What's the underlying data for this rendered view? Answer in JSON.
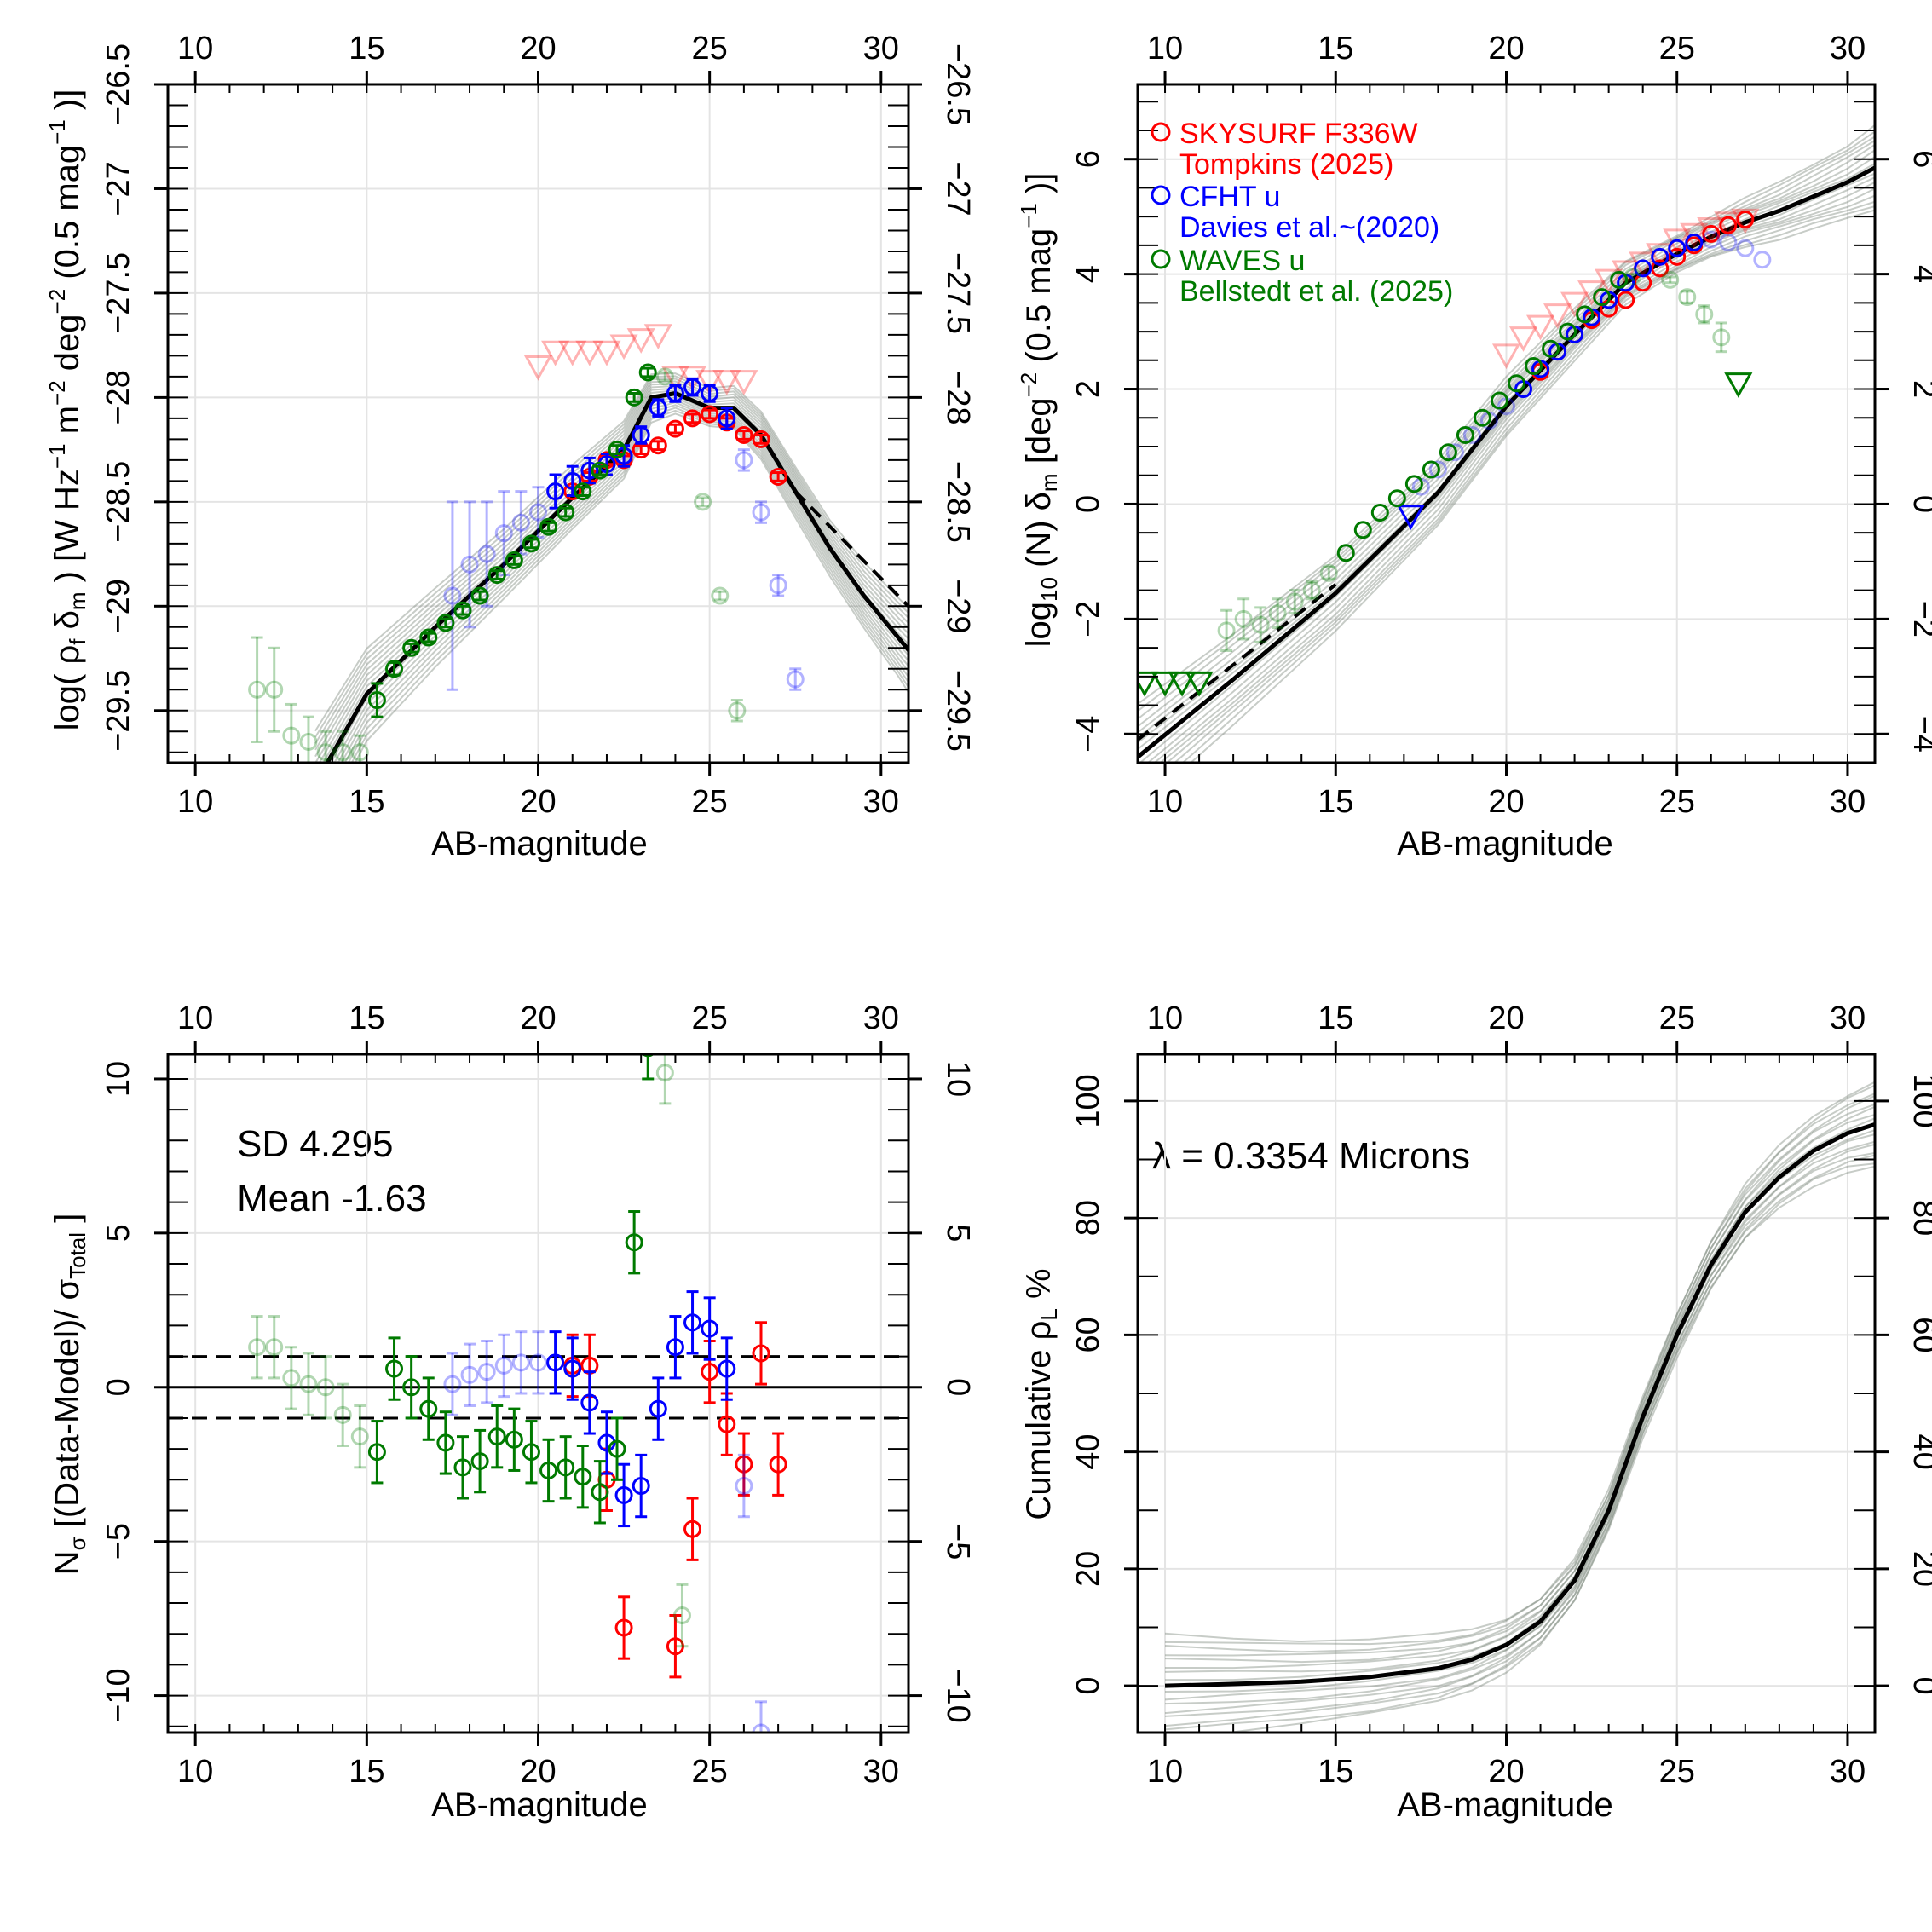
{
  "figure": {
    "palette": {
      "skysurf": "#ff0000",
      "cfht": "#0000ff",
      "waves": "#007a00",
      "model": "#000000",
      "mc": "#5e6e5e"
    }
  },
  "chart_data": [
    {
      "id": "panel-lumdens",
      "type": "scatter",
      "xlabel": "AB-magnitude",
      "ylabel": "log( ρf δm ) [W Hz−1 m−2 deg−2 (0.5 mag−1 )]",
      "xlim": [
        9.2,
        30.8
      ],
      "ylim": [
        -29.75,
        -26.5
      ],
      "xticks": [
        10,
        15,
        20,
        25,
        30
      ],
      "yticks": [
        -29.5,
        -29,
        -28.5,
        -28,
        -27.5,
        -27,
        -26.5
      ],
      "grid": true,
      "series": [
        {
          "name": "SKYSURF F336W",
          "color": "#ff0000",
          "marker": "circle",
          "x": [
            21,
            21.5,
            22,
            22.5,
            23,
            23.5,
            24,
            24.5,
            25,
            25.5,
            26,
            26.5,
            27
          ],
          "y": [
            -28.45,
            -28.38,
            -28.3,
            -28.3,
            -28.25,
            -28.23,
            -28.15,
            -28.1,
            -28.08,
            -28.12,
            -28.18,
            -28.2,
            -28.38
          ],
          "err": [
            0.02,
            0.02,
            0.02,
            0.02,
            0.02,
            0.02,
            0.02,
            0.02,
            0.02,
            0.02,
            0.02,
            0.02,
            0.02
          ]
        },
        {
          "name": "SKYSURF F336W (upper limits)",
          "color": "#ff0000",
          "marker": "triangle-down",
          "faded": true,
          "x": [
            20,
            20.5,
            21,
            21.5,
            22,
            22.5,
            23,
            23.5,
            24,
            24.5,
            25,
            25.5,
            26
          ],
          "y": [
            -27.85,
            -27.78,
            -27.78,
            -27.78,
            -27.78,
            -27.75,
            -27.72,
            -27.7,
            -27.9,
            -27.9,
            -27.92,
            -27.92,
            -27.92
          ]
        },
        {
          "name": "CFHT u",
          "color": "#0000ff",
          "marker": "circle",
          "x": [
            20.5,
            21,
            21.5,
            22,
            22.5,
            23,
            23.5,
            24,
            24.5,
            25,
            25.5
          ],
          "y": [
            -28.45,
            -28.4,
            -28.35,
            -28.32,
            -28.28,
            -28.18,
            -28.05,
            -27.98,
            -27.95,
            -27.98,
            -28.1
          ],
          "err": [
            0.08,
            0.07,
            0.06,
            0.05,
            0.05,
            0.04,
            0.04,
            0.04,
            0.04,
            0.04,
            0.05
          ]
        },
        {
          "name": "CFHT u (faded)",
          "color": "#0000ff",
          "marker": "circle",
          "faded": true,
          "x": [
            17.5,
            18,
            18.5,
            19,
            19.5,
            20,
            26,
            26.5,
            27,
            27.5
          ],
          "y": [
            -28.95,
            -28.8,
            -28.75,
            -28.65,
            -28.6,
            -28.55,
            -28.3,
            -28.55,
            -28.9,
            -29.35
          ],
          "err": [
            0.45,
            0.3,
            0.25,
            0.2,
            0.15,
            0.12,
            0.05,
            0.05,
            0.05,
            0.05
          ]
        },
        {
          "name": "WAVES u",
          "color": "#007a00",
          "marker": "circle",
          "x": [
            15.3,
            15.8,
            16.3,
            16.8,
            17.3,
            17.8,
            18.3,
            18.8,
            19.3,
            19.8,
            20.3,
            20.8,
            21.3,
            21.8,
            22.3,
            22.8,
            23.2
          ],
          "y": [
            -29.45,
            -29.3,
            -29.2,
            -29.15,
            -29.08,
            -29.02,
            -28.95,
            -28.85,
            -28.78,
            -28.7,
            -28.62,
            -28.55,
            -28.45,
            -28.35,
            -28.25,
            -28.0,
            -27.88
          ],
          "err": [
            0.08,
            0.03,
            0.02,
            0.02,
            0.02,
            0.02,
            0.02,
            0.02,
            0.02,
            0.02,
            0.02,
            0.02,
            0.02,
            0.02,
            0.02,
            0.02,
            0.02
          ]
        },
        {
          "name": "WAVES u (faded)",
          "color": "#007a00",
          "marker": "circle",
          "faded": true,
          "x": [
            11.8,
            12.3,
            12.8,
            13.3,
            13.8,
            14.3,
            14.8,
            23.7,
            24.8,
            25.3,
            25.8
          ],
          "y": [
            -29.4,
            -29.4,
            -29.62,
            -29.65,
            -29.7,
            -29.7,
            -29.7,
            -27.9,
            -28.5,
            -28.95,
            -29.5
          ],
          "err": [
            0.25,
            0.2,
            0.15,
            0.12,
            0.1,
            0.1,
            0.08,
            0.02,
            0.02,
            0.02,
            0.05
          ]
        }
      ],
      "model": {
        "x": [
          13.5,
          15,
          17,
          19,
          21,
          22.5,
          23.3,
          24,
          25,
          25.7,
          26.5,
          27.5,
          28.5,
          29.5,
          30.5,
          31
        ],
        "y": [
          -29.85,
          -29.42,
          -29.1,
          -28.8,
          -28.48,
          -28.25,
          -28.0,
          -27.98,
          -28.05,
          -28.05,
          -28.18,
          -28.45,
          -28.72,
          -28.95,
          -29.15,
          -29.25
        ],
        "dashed_end_y": -29.0
      }
    },
    {
      "id": "panel-counts",
      "type": "scatter",
      "xlabel": "AB-magnitude",
      "ylabel": "log10 (N) δm [deg−2 (0.5 mag−1 )]",
      "xlim": [
        9.2,
        30.8
      ],
      "ylim": [
        -4.5,
        7.3
      ],
      "xticks": [
        10,
        15,
        20,
        25,
        30
      ],
      "yticks": [
        -4,
        -2,
        0,
        2,
        4,
        6
      ],
      "grid": true,
      "legend": [
        {
          "label": "SKYSURF F336W",
          "ref": "Tompkins (2025)",
          "color": "#ff0000"
        },
        {
          "label": "CFHT u",
          "ref": "Davies et al.~(2020)",
          "color": "#0000ff"
        },
        {
          "label": "WAVES u",
          "ref": "Bellstedt et al. (2025)",
          "color": "#007a00"
        }
      ],
      "series": [
        {
          "name": "SKYSURF F336W",
          "color": "#ff0000",
          "marker": "circle",
          "x": [
            21,
            21.5,
            22,
            22.5,
            23,
            23.5,
            24,
            24.5,
            25,
            25.5,
            26,
            26.5,
            27
          ],
          "y": [
            2.3,
            2.65,
            2.95,
            3.2,
            3.4,
            3.55,
            3.85,
            4.1,
            4.3,
            4.5,
            4.7,
            4.85,
            4.95
          ]
        },
        {
          "name": "SKYSURF F336W (upper limits)",
          "color": "#ff0000",
          "marker": "triangle-down",
          "faded": true,
          "x": [
            20,
            20.5,
            21,
            21.5,
            22,
            22.5,
            23,
            23.5,
            24,
            24.5,
            25,
            25.5,
            26,
            26.5,
            27
          ],
          "y": [
            2.6,
            2.9,
            3.1,
            3.3,
            3.5,
            3.7,
            3.9,
            4.05,
            4.2,
            4.35,
            4.6,
            4.7,
            4.8,
            4.9,
            4.95
          ]
        },
        {
          "name": "CFHT u",
          "color": "#0000ff",
          "marker": "circle",
          "x": [
            20.5,
            21,
            21.5,
            22,
            22.5,
            23,
            23.5,
            24,
            24.5,
            25,
            25.5
          ],
          "y": [
            2.0,
            2.35,
            2.65,
            2.95,
            3.25,
            3.55,
            3.85,
            4.1,
            4.3,
            4.45,
            4.55
          ]
        },
        {
          "name": "CFHT u (upper limit)",
          "color": "#0000ff",
          "marker": "triangle-down",
          "x": [
            17.2
          ],
          "y": [
            -0.2
          ]
        },
        {
          "name": "CFHT u (faded)",
          "color": "#0000ff",
          "marker": "circle",
          "faded": true,
          "x": [
            17.5,
            18,
            18.5,
            19,
            19.5,
            20,
            26,
            26.5,
            27,
            27.5
          ],
          "y": [
            0.3,
            0.6,
            0.9,
            1.2,
            1.45,
            1.7,
            4.6,
            4.55,
            4.45,
            4.25
          ]
        },
        {
          "name": "WAVES u",
          "color": "#007a00",
          "marker": "circle",
          "x": [
            15.3,
            15.8,
            16.3,
            16.8,
            17.3,
            17.8,
            18.3,
            18.8,
            19.3,
            19.8,
            20.3,
            20.8,
            21.3,
            21.8,
            22.3,
            22.8,
            23.3
          ],
          "y": [
            -0.85,
            -0.45,
            -0.15,
            0.1,
            0.35,
            0.6,
            0.9,
            1.2,
            1.5,
            1.8,
            2.1,
            2.4,
            2.7,
            3.0,
            3.3,
            3.6,
            3.9
          ]
        },
        {
          "name": "WAVES u (upper limits)",
          "color": "#007a00",
          "marker": "triangle-down",
          "x": [
            9.4,
            10,
            10.5,
            11,
            26.8
          ],
          "y": [
            -3.1,
            -3.1,
            -3.1,
            -3.1,
            2.1
          ]
        },
        {
          "name": "WAVES u (faded)",
          "color": "#007a00",
          "marker": "circle",
          "faded": true,
          "x": [
            11.8,
            12.3,
            12.8,
            13.3,
            13.8,
            14.3,
            14.8,
            23.7,
            24.8,
            25.3,
            25.8,
            26.3
          ],
          "y": [
            -2.2,
            -2.0,
            -2.1,
            -1.9,
            -1.7,
            -1.5,
            -1.2,
            3.95,
            3.9,
            3.6,
            3.3,
            2.9
          ],
          "err": [
            0.35,
            0.35,
            0.3,
            0.25,
            0.2,
            0.15,
            0.1,
            0.05,
            0.05,
            0.1,
            0.15,
            0.25
          ]
        }
      ],
      "model": {
        "x": [
          9.2,
          12,
          15,
          18,
          20,
          22,
          23.5,
          25,
          26,
          27,
          28,
          29,
          30,
          30.8
        ],
        "y": [
          -4.4,
          -3.05,
          -1.55,
          0.2,
          1.7,
          2.95,
          3.85,
          4.35,
          4.65,
          4.9,
          5.1,
          5.35,
          5.6,
          5.85
        ]
      }
    },
    {
      "id": "panel-residuals",
      "type": "scatter",
      "xlabel": "AB-magnitude",
      "ylabel": "Nσ [(Data-Model)/ σTotal ]",
      "xlim": [
        9.2,
        30.8
      ],
      "ylim": [
        -11.2,
        10.8
      ],
      "xticks": [
        10,
        15,
        20,
        25,
        30
      ],
      "yticks": [
        -10,
        -5,
        0,
        5,
        10
      ],
      "grid": true,
      "stats": {
        "sd": "SD 4.295",
        "mean": "Mean -1.63"
      },
      "reference_lines": {
        "solid": 0,
        "dashed": [
          1,
          -1
        ]
      },
      "series": [
        {
          "name": "SKYSURF F336W",
          "color": "#ff0000",
          "marker": "circle",
          "x": [
            21,
            21.5,
            22,
            22.5,
            24,
            24.5,
            25,
            25.5,
            26,
            26.5,
            27
          ],
          "y": [
            0.7,
            0.7,
            -3.0,
            -7.8,
            -8.4,
            -4.6,
            0.5,
            -1.2,
            -2.5,
            1.1,
            -2.5
          ],
          "err": [
            1.0,
            1.0,
            1.0,
            1.0,
            1.0,
            1.0,
            1.0,
            1.0,
            1.0,
            1.0,
            1.0
          ]
        },
        {
          "name": "CFHT u",
          "color": "#0000ff",
          "marker": "circle",
          "x": [
            20.5,
            21,
            21.5,
            22,
            22.5,
            23,
            23.5,
            24,
            24.5,
            25,
            25.5
          ],
          "y": [
            0.8,
            0.6,
            -0.5,
            -1.8,
            -3.5,
            -3.2,
            -0.7,
            1.3,
            2.1,
            1.9,
            0.6
          ],
          "err": [
            1.0,
            1.0,
            1.0,
            1.0,
            1.0,
            1.0,
            1.0,
            1.0,
            1.0,
            1.0,
            1.0
          ]
        },
        {
          "name": "CFHT u (faded)",
          "color": "#0000ff",
          "marker": "circle",
          "faded": true,
          "x": [
            17.5,
            18,
            18.5,
            19,
            19.5,
            20,
            26,
            26.5
          ],
          "y": [
            0.1,
            0.4,
            0.5,
            0.7,
            0.8,
            0.8,
            -3.2,
            -11.2
          ],
          "err": [
            1.0,
            1.0,
            1.0,
            1.0,
            1.0,
            1.0,
            1.0,
            1.0
          ]
        },
        {
          "name": "WAVES u",
          "color": "#007a00",
          "marker": "circle",
          "x": [
            15.3,
            15.8,
            16.3,
            16.8,
            17.3,
            17.8,
            18.3,
            18.8,
            19.3,
            19.8,
            20.3,
            20.8,
            21.3,
            21.8,
            22.3,
            22.8,
            23.2
          ],
          "y": [
            -2.1,
            0.6,
            0.0,
            -0.7,
            -1.8,
            -2.6,
            -2.4,
            -1.6,
            -1.7,
            -2.1,
            -2.7,
            -2.6,
            -2.9,
            -3.4,
            -2.0,
            4.7,
            11.0
          ],
          "err": [
            1.0,
            1.0,
            1.0,
            1.0,
            1.0,
            1.0,
            1.0,
            1.0,
            1.0,
            1.0,
            1.0,
            1.0,
            1.0,
            1.0,
            1.0,
            1.0,
            1.0
          ]
        },
        {
          "name": "WAVES u (faded)",
          "color": "#007a00",
          "marker": "circle",
          "faded": true,
          "x": [
            11.8,
            12.3,
            12.8,
            13.3,
            13.8,
            14.3,
            14.8,
            23.7,
            24.2
          ],
          "y": [
            1.3,
            1.3,
            0.3,
            0.1,
            0.0,
            -0.9,
            -1.6,
            10.2,
            -7.4
          ],
          "err": [
            1.0,
            1.0,
            1.0,
            1.0,
            1.0,
            1.0,
            1.0,
            1.0,
            1.0
          ]
        }
      ]
    },
    {
      "id": "panel-cumulative",
      "type": "line",
      "xlabel": "AB-magnitude",
      "ylabel": "Cumulative  ρL %",
      "annotation": "λ = 0.3354 Microns",
      "xlim": [
        9.2,
        30.8
      ],
      "ylim": [
        -8,
        108
      ],
      "xticks": [
        10,
        15,
        20,
        25,
        30
      ],
      "yticks": [
        0,
        20,
        40,
        60,
        80,
        100
      ],
      "grid": true,
      "model": {
        "x": [
          10,
          12,
          14,
          16,
          18,
          19,
          20,
          21,
          22,
          23,
          24,
          25,
          26,
          27,
          28,
          29,
          30,
          30.8
        ],
        "y": [
          0,
          0.3,
          0.7,
          1.5,
          3.0,
          4.5,
          7.0,
          11.0,
          18.0,
          30.0,
          46.0,
          60.0,
          72.0,
          81.0,
          87.0,
          91.5,
          94.5,
          96.0
        ]
      }
    }
  ]
}
